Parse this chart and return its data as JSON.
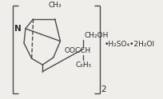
{
  "bg_color": "#f0eeea",
  "line_color": "#4a4a4a",
  "text_color": "#2a2a2a",
  "suffix_text": "•H₂SO₄•2H₂Ol",
  "subscript_2": "2",
  "n_label": "N",
  "ch3_label": "CH₃",
  "ch2oh_label": "CH₂OH",
  "oocch_label": "OOCCH",
  "c6h5_label": "C₆H₅"
}
